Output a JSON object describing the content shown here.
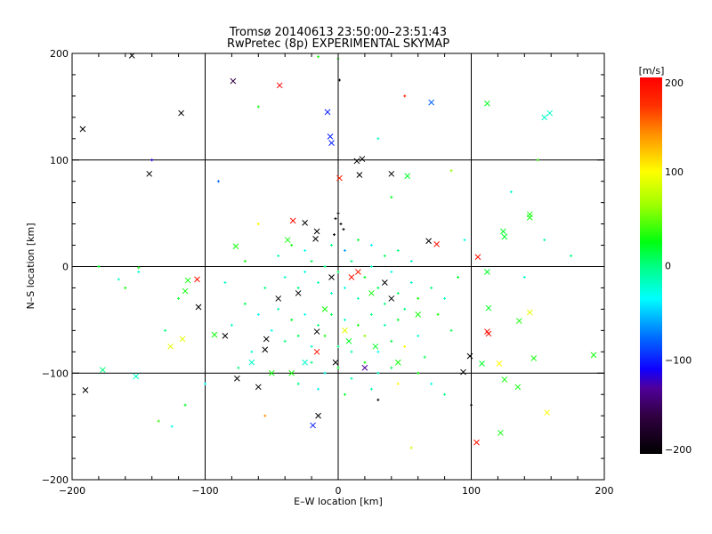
{
  "chart_data": {
    "type": "scatter",
    "title": "Tromsø 20140613 23:50:00–23:51:43",
    "subtitle": "RwPretec (8p) EXPERIMENTAL SKYMAP",
    "xlabel": "E–W location [km]",
    "ylabel": "N–S location [km]",
    "xlim": [
      -200,
      200
    ],
    "ylim": [
      -200,
      200
    ],
    "xticks": [
      "−200",
      "−100",
      "0",
      "100",
      "200"
    ],
    "yticks": [
      "−200",
      "−100",
      "0",
      "100",
      "200"
    ],
    "xtick_values": [
      -200,
      -100,
      0,
      100,
      200
    ],
    "ytick_values": [
      -200,
      -100,
      0,
      100,
      200
    ],
    "grid": true,
    "colorbar": {
      "label": "[m/s]",
      "range": [
        -200,
        200
      ],
      "ticks": [
        "200",
        "100",
        "0",
        "−100",
        "−200"
      ],
      "tick_values": [
        200,
        100,
        0,
        -100,
        -200
      ],
      "colormap": [
        [
          -200,
          "#000000"
        ],
        [
          -160,
          "#300040"
        ],
        [
          -130,
          "#50009a"
        ],
        [
          -110,
          "#1000ff"
        ],
        [
          -75,
          "#0070ff"
        ],
        [
          -35,
          "#00ffff"
        ],
        [
          0,
          "#00ff80"
        ],
        [
          25,
          "#00ff10"
        ],
        [
          65,
          "#a0ff00"
        ],
        [
          100,
          "#ffff00"
        ],
        [
          140,
          "#ff9000"
        ],
        [
          170,
          "#ff3000"
        ],
        [
          200,
          "#ff0000"
        ]
      ]
    },
    "crosses": [
      [
        -192,
        129,
        -200
      ],
      [
        -155,
        198,
        -200
      ],
      [
        -118,
        144,
        -200
      ],
      [
        -142,
        87,
        -200
      ],
      [
        -79,
        174,
        -160
      ],
      [
        -44,
        170,
        200
      ],
      [
        70,
        154,
        -80
      ],
      [
        112,
        153,
        20
      ],
      [
        155,
        140,
        -20
      ],
      [
        159,
        144,
        -20
      ],
      [
        -8,
        145,
        -100
      ],
      [
        -5,
        116,
        -100
      ],
      [
        -6,
        122,
        -100
      ],
      [
        14,
        99,
        -200
      ],
      [
        18,
        101,
        -200
      ],
      [
        16,
        86,
        -200
      ],
      [
        40,
        87,
        -200
      ],
      [
        52,
        85,
        20
      ],
      [
        1,
        83,
        180
      ],
      [
        -34,
        43,
        190
      ],
      [
        -25,
        41,
        -200
      ],
      [
        -16,
        33,
        -200
      ],
      [
        -17,
        26,
        -200
      ],
      [
        -38,
        25,
        30
      ],
      [
        -77,
        19,
        30
      ],
      [
        68,
        24,
        -200
      ],
      [
        74,
        21,
        190
      ],
      [
        105,
        9,
        190
      ],
      [
        112,
        -5,
        20
      ],
      [
        124,
        33,
        20
      ],
      [
        125,
        28,
        20
      ],
      [
        144,
        49,
        30
      ],
      [
        144,
        46,
        30
      ],
      [
        144,
        -43,
        90
      ],
      [
        136,
        -51,
        30
      ],
      [
        112,
        -61,
        190
      ],
      [
        113,
        -63,
        190
      ],
      [
        113,
        -39,
        20
      ],
      [
        -113,
        -13,
        30
      ],
      [
        -106,
        -12,
        190
      ],
      [
        -105,
        -38,
        -200
      ],
      [
        -115,
        -23,
        30
      ],
      [
        -126,
        -75,
        90
      ],
      [
        -117,
        -68,
        90
      ],
      [
        -93,
        -64,
        30
      ],
      [
        -85,
        -65,
        -200
      ],
      [
        -76,
        -105,
        -200
      ],
      [
        -60,
        -113,
        -200
      ],
      [
        -55,
        -78,
        -200
      ],
      [
        -54,
        -68,
        -200
      ],
      [
        -16,
        -61,
        -200
      ],
      [
        -16,
        -80,
        190
      ],
      [
        -15,
        -140,
        -200
      ],
      [
        -19,
        -149,
        -100
      ],
      [
        99,
        -84,
        -200
      ],
      [
        94,
        -99,
        -200
      ],
      [
        108,
        -91,
        20
      ],
      [
        121,
        -91,
        100
      ],
      [
        125,
        -106,
        30
      ],
      [
        135,
        -113,
        30
      ],
      [
        147,
        -86,
        30
      ],
      [
        157,
        -137,
        100
      ],
      [
        104,
        -165,
        190
      ],
      [
        122,
        -156,
        30
      ],
      [
        192,
        -83,
        30
      ],
      [
        -152,
        -103,
        -20
      ],
      [
        -177,
        -97,
        0
      ],
      [
        -190,
        -116,
        -200
      ],
      [
        10,
        -10,
        190
      ],
      [
        15,
        -5,
        180
      ],
      [
        -5,
        -10,
        -200
      ],
      [
        35,
        -15,
        -200
      ],
      [
        25,
        -25,
        30
      ],
      [
        40,
        -30,
        -200
      ],
      [
        5,
        -60,
        90
      ],
      [
        -30,
        -25,
        -200
      ],
      [
        -45,
        -30,
        -200
      ],
      [
        -10,
        -40,
        30
      ],
      [
        60,
        -45,
        30
      ],
      [
        -25,
        -90,
        -20
      ],
      [
        -35,
        -100,
        30
      ],
      [
        20,
        -95,
        -130
      ],
      [
        45,
        -90,
        30
      ],
      [
        -65,
        -90,
        -20
      ],
      [
        -50,
        -100,
        30
      ],
      [
        8,
        -70,
        20
      ],
      [
        -2,
        -90,
        -200
      ],
      [
        28,
        -75,
        20
      ]
    ],
    "points": [
      [
        -40,
        -10,
        -20
      ],
      [
        -30,
        -20,
        0
      ],
      [
        -25,
        -5,
        -30
      ],
      [
        -20,
        5,
        10
      ],
      [
        -15,
        -15,
        -10
      ],
      [
        -10,
        0,
        0
      ],
      [
        -5,
        -25,
        -20
      ],
      [
        0,
        -5,
        10
      ],
      [
        5,
        -20,
        -30
      ],
      [
        10,
        5,
        0
      ],
      [
        15,
        -30,
        -10
      ],
      [
        20,
        -10,
        20
      ],
      [
        25,
        0,
        -20
      ],
      [
        30,
        -20,
        10
      ],
      [
        35,
        -35,
        0
      ],
      [
        40,
        -5,
        -30
      ],
      [
        45,
        -25,
        10
      ],
      [
        50,
        -40,
        0
      ],
      [
        55,
        -15,
        -20
      ],
      [
        60,
        -30,
        30
      ],
      [
        -45,
        -40,
        -10
      ],
      [
        -35,
        -50,
        20
      ],
      [
        -25,
        -45,
        -30
      ],
      [
        -15,
        -55,
        0
      ],
      [
        -5,
        -45,
        10
      ],
      [
        5,
        -50,
        -20
      ],
      [
        15,
        -55,
        30
      ],
      [
        25,
        -45,
        0
      ],
      [
        35,
        -55,
        -10
      ],
      [
        45,
        -50,
        20
      ],
      [
        -50,
        -60,
        -30
      ],
      [
        -40,
        -70,
        0
      ],
      [
        -30,
        -65,
        10
      ],
      [
        -20,
        -75,
        -20
      ],
      [
        -10,
        -65,
        30
      ],
      [
        0,
        -75,
        0
      ],
      [
        10,
        -80,
        -10
      ],
      [
        20,
        -65,
        60
      ],
      [
        30,
        -80,
        -30
      ],
      [
        40,
        -70,
        10
      ],
      [
        50,
        -75,
        100
      ],
      [
        60,
        -65,
        -20
      ],
      [
        -55,
        -20,
        0
      ],
      [
        -60,
        -45,
        -30
      ],
      [
        -70,
        -35,
        10
      ],
      [
        -80,
        -55,
        -20
      ],
      [
        70,
        -20,
        0
      ],
      [
        75,
        -45,
        30
      ],
      [
        80,
        -30,
        -20
      ],
      [
        85,
        -60,
        10
      ],
      [
        -45,
        10,
        -10
      ],
      [
        -35,
        20,
        30
      ],
      [
        -25,
        15,
        -30
      ],
      [
        -5,
        20,
        0
      ],
      [
        5,
        15,
        -60
      ],
      [
        15,
        25,
        20
      ],
      [
        25,
        20,
        -30
      ],
      [
        35,
        10,
        10
      ],
      [
        45,
        15,
        0
      ],
      [
        55,
        5,
        -20
      ],
      [
        -20,
        -90,
        0
      ],
      [
        -10,
        -100,
        -30
      ],
      [
        0,
        -95,
        20
      ],
      [
        10,
        -105,
        -10
      ],
      [
        20,
        -90,
        30
      ],
      [
        30,
        -100,
        -20
      ],
      [
        40,
        -95,
        10
      ],
      [
        -30,
        -110,
        0
      ],
      [
        -15,
        -115,
        -30
      ],
      [
        5,
        -120,
        20
      ],
      [
        25,
        -115,
        -10
      ],
      [
        45,
        -110,
        100
      ],
      [
        60,
        -100,
        30
      ],
      [
        -65,
        -80,
        -20
      ],
      [
        -75,
        -95,
        0
      ],
      [
        65,
        -85,
        10
      ],
      [
        70,
        -110,
        -30
      ],
      [
        80,
        -120,
        0
      ],
      [
        -85,
        -15,
        -20
      ],
      [
        90,
        -10,
        20
      ],
      [
        2,
        40,
        -200
      ],
      [
        0,
        50,
        -200
      ],
      [
        -2,
        45,
        -200
      ],
      [
        4,
        35,
        -200
      ],
      [
        -3,
        30,
        -200
      ],
      [
        1,
        175,
        -200
      ],
      [
        -120,
        -30,
        20
      ],
      [
        -130,
        -60,
        0
      ],
      [
        -150,
        -5,
        -20
      ],
      [
        -180,
        0,
        20
      ],
      [
        -160,
        -20,
        30
      ],
      [
        130,
        70,
        -20
      ],
      [
        150,
        100,
        40
      ],
      [
        155,
        25,
        -10
      ],
      [
        175,
        10,
        0
      ],
      [
        -60,
        40,
        100
      ],
      [
        -90,
        80,
        -80
      ],
      [
        -60,
        150,
        30
      ],
      [
        -55,
        -140,
        140
      ],
      [
        -100,
        -110,
        -30
      ],
      [
        -115,
        -130,
        20
      ],
      [
        -135,
        -145,
        40
      ],
      [
        55,
        -170,
        80
      ],
      [
        40,
        65,
        20
      ],
      [
        30,
        120,
        -20
      ],
      [
        -140,
        100,
        -110
      ],
      [
        -125,
        -150,
        -30
      ],
      [
        100,
        -130,
        -200
      ],
      [
        30,
        -125,
        -200
      ],
      [
        85,
        90,
        60
      ],
      [
        50,
        160,
        180
      ],
      [
        0,
        195,
        30
      ],
      [
        -15,
        197,
        30
      ],
      [
        -150,
        -1,
        30
      ],
      [
        -165,
        -12,
        -20
      ],
      [
        140,
        -10,
        -20
      ],
      [
        -70,
        5,
        30
      ],
      [
        95,
        25,
        -30
      ]
    ]
  }
}
